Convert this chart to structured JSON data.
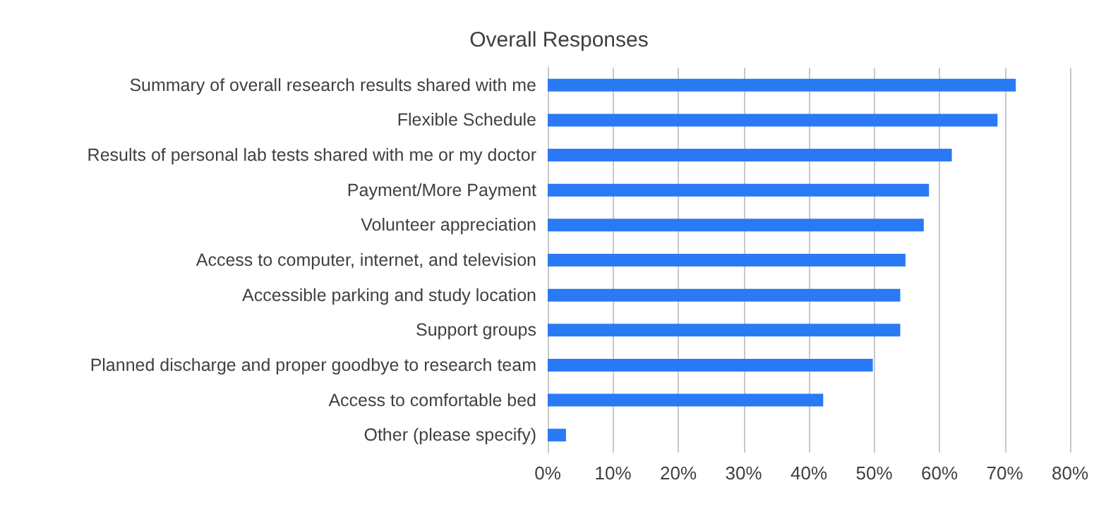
{
  "chart_data": {
    "type": "bar",
    "orientation": "horizontal",
    "title": "Overall Responses",
    "categories": [
      "Summary of overall research results shared with me",
      "Flexible Schedule",
      "Results of personal lab tests shared with me or my doctor",
      "Payment/More Payment",
      "Volunteer appreciation",
      "Access to computer, internet, and television",
      "Accessible parking and study location",
      "Support groups",
      "Planned discharge and proper goodbye to research team",
      "Access to comfortable bed",
      "Other (please specify)"
    ],
    "values": [
      71.7,
      68.9,
      61.9,
      58.4,
      57.6,
      54.8,
      54.0,
      54.0,
      49.8,
      42.2,
      2.8
    ],
    "color": "#2a7af5",
    "xlim": [
      0,
      80
    ],
    "xticks": [
      {
        "value": 0,
        "label": "0%"
      },
      {
        "value": 10,
        "label": "10%"
      },
      {
        "value": 20,
        "label": "20%"
      },
      {
        "value": 30,
        "label": "30%"
      },
      {
        "value": 40,
        "label": "40%"
      },
      {
        "value": 50,
        "label": "50%"
      },
      {
        "value": 60,
        "label": "60%"
      },
      {
        "value": 70,
        "label": "70%"
      },
      {
        "value": 80,
        "label": "80%"
      }
    ],
    "grid": "x"
  }
}
